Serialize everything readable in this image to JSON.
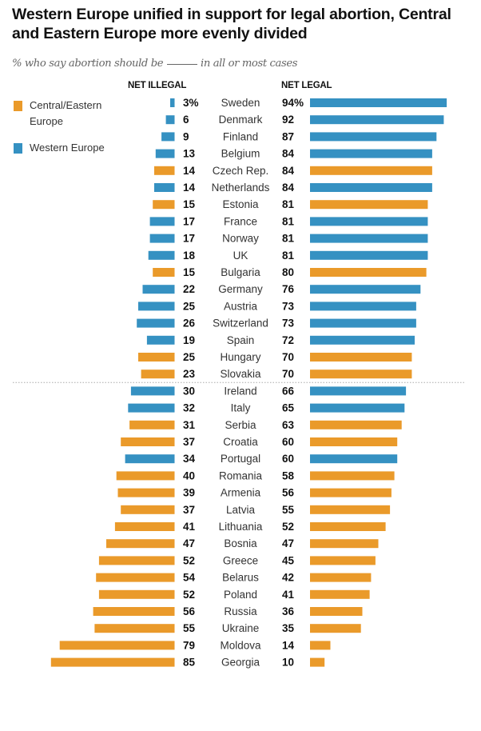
{
  "chart_data": {
    "type": "bar",
    "title": "Western Europe unified in support for legal abortion, Central and Eastern Europe more evenly divided",
    "subtitle_before": "% who say abortion should be",
    "subtitle_after": "in all or most cases",
    "left_header": "NET ILLEGAL",
    "right_header": "NET LEGAL",
    "legend_position": "top-left",
    "legend": [
      {
        "key": "cee",
        "label": "Central/Eastern Europe",
        "color": "#EA9A2A"
      },
      {
        "key": "west",
        "label": "Western Europe",
        "color": "#3591C2"
      }
    ],
    "unit_suffix_first_row": "%",
    "xlim": [
      0,
      100
    ],
    "divider_after_index": 16,
    "rows": [
      {
        "country": "Sweden",
        "region": "west",
        "illegal": 3,
        "legal": 94
      },
      {
        "country": "Denmark",
        "region": "west",
        "illegal": 6,
        "legal": 92
      },
      {
        "country": "Finland",
        "region": "west",
        "illegal": 9,
        "legal": 87
      },
      {
        "country": "Belgium",
        "region": "west",
        "illegal": 13,
        "legal": 84
      },
      {
        "country": "Czech Rep.",
        "region": "cee",
        "illegal": 14,
        "legal": 84
      },
      {
        "country": "Netherlands",
        "region": "west",
        "illegal": 14,
        "legal": 84
      },
      {
        "country": "Estonia",
        "region": "cee",
        "illegal": 15,
        "legal": 81
      },
      {
        "country": "France",
        "region": "west",
        "illegal": 17,
        "legal": 81
      },
      {
        "country": "Norway",
        "region": "west",
        "illegal": 17,
        "legal": 81
      },
      {
        "country": "UK",
        "region": "west",
        "illegal": 18,
        "legal": 81
      },
      {
        "country": "Bulgaria",
        "region": "cee",
        "illegal": 15,
        "legal": 80
      },
      {
        "country": "Germany",
        "region": "west",
        "illegal": 22,
        "legal": 76
      },
      {
        "country": "Austria",
        "region": "west",
        "illegal": 25,
        "legal": 73
      },
      {
        "country": "Switzerland",
        "region": "west",
        "illegal": 26,
        "legal": 73
      },
      {
        "country": "Spain",
        "region": "west",
        "illegal": 19,
        "legal": 72
      },
      {
        "country": "Hungary",
        "region": "cee",
        "illegal": 25,
        "legal": 70
      },
      {
        "country": "Slovakia",
        "region": "cee",
        "illegal": 23,
        "legal": 70
      },
      {
        "country": "Ireland",
        "region": "west",
        "illegal": 30,
        "legal": 66
      },
      {
        "country": "Italy",
        "region": "west",
        "illegal": 32,
        "legal": 65
      },
      {
        "country": "Serbia",
        "region": "cee",
        "illegal": 31,
        "legal": 63
      },
      {
        "country": "Croatia",
        "region": "cee",
        "illegal": 37,
        "legal": 60
      },
      {
        "country": "Portugal",
        "region": "west",
        "illegal": 34,
        "legal": 60
      },
      {
        "country": "Romania",
        "region": "cee",
        "illegal": 40,
        "legal": 58
      },
      {
        "country": "Armenia",
        "region": "cee",
        "illegal": 39,
        "legal": 56
      },
      {
        "country": "Latvia",
        "region": "cee",
        "illegal": 37,
        "legal": 55
      },
      {
        "country": "Lithuania",
        "region": "cee",
        "illegal": 41,
        "legal": 52
      },
      {
        "country": "Bosnia",
        "region": "cee",
        "illegal": 47,
        "legal": 47
      },
      {
        "country": "Greece",
        "region": "cee",
        "illegal": 52,
        "legal": 45
      },
      {
        "country": "Belarus",
        "region": "cee",
        "illegal": 54,
        "legal": 42
      },
      {
        "country": "Poland",
        "region": "cee",
        "illegal": 52,
        "legal": 41
      },
      {
        "country": "Russia",
        "region": "cee",
        "illegal": 56,
        "legal": 36
      },
      {
        "country": "Ukraine",
        "region": "cee",
        "illegal": 55,
        "legal": 35
      },
      {
        "country": "Moldova",
        "region": "cee",
        "illegal": 79,
        "legal": 14
      },
      {
        "country": "Georgia",
        "region": "cee",
        "illegal": 85,
        "legal": 10
      }
    ]
  }
}
